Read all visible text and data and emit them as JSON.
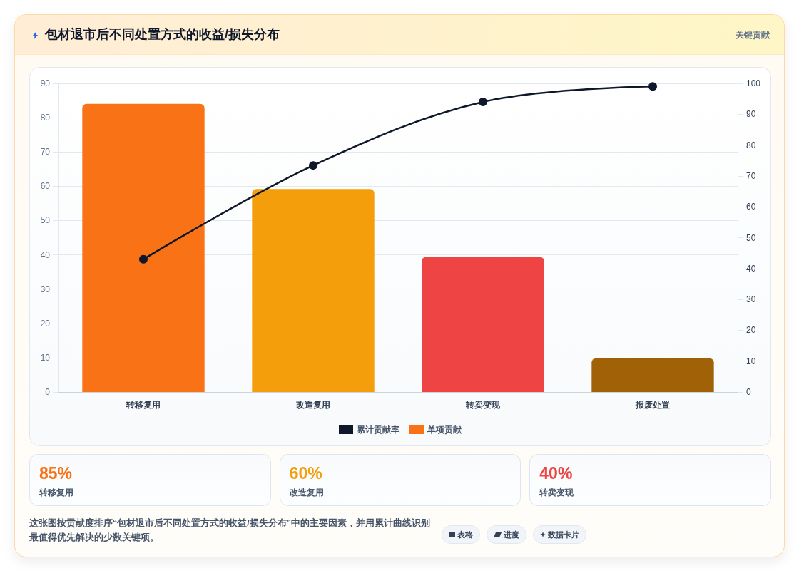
{
  "chart_data": [
    {
      "type": "bar",
      "title": "包材退市后不同处置方式的收益/损失分布",
      "subtitle": "关键贡献",
      "categories": [
        "转移复用",
        "改造复用",
        "转卖变现",
        "报废处置"
      ],
      "series": [
        {
          "name": "累计贡献率",
          "type": "line",
          "axis": "y2",
          "color": "#0f172a",
          "values": [
            43,
            73.4,
            94,
            99
          ]
        },
        {
          "name": "单项贡献",
          "type": "bar",
          "color": "#f97316",
          "colors": [
            "#f97316",
            "#f59e0b",
            "#ef4444",
            "#a16207"
          ],
          "values": [
            84,
            59.2,
            39.4,
            9.8
          ]
        }
      ],
      "ylim": [
        0,
        90
      ],
      "yticks": [
        0,
        10,
        20,
        30,
        40,
        50,
        60,
        70,
        80,
        90
      ],
      "y2lim": [
        0,
        100
      ],
      "y2ticks": [
        0,
        10,
        20,
        30,
        40,
        50,
        60,
        70,
        80,
        90,
        100
      ],
      "grid": "y",
      "legend": "bottom",
      "marker": "circle",
      "annotations": [
        "这张图按贡献度排序“包材退市后不同处置方式的收益/损失分布”中的主要因素，并用累计曲线识别最值得优先解决的少数关键项。",
        "表格",
        "进度",
        "数据卡片"
      ]
    },
    {
      "type": "other",
      "annotations": [
        "85%",
        "转移复用",
        "60%",
        "改造复用",
        "40%",
        "转卖变现"
      ]
    }
  ]
}
